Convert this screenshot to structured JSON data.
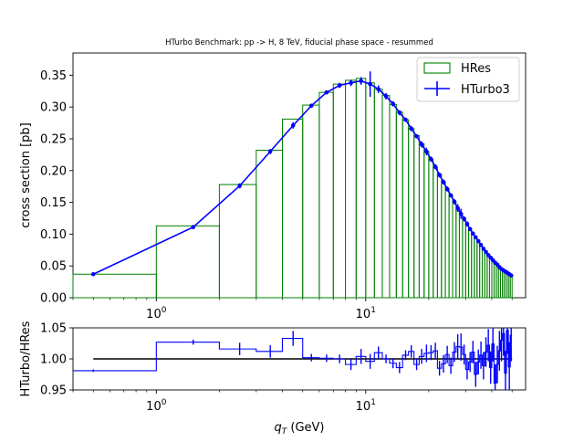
{
  "chart_data": [
    {
      "type": "histogram-line",
      "title": "HTurbo Benchmark: pp -> H, 8 TeV, fiducial phase space - resummed",
      "xlabel": "",
      "ylabel": "cross section [pb]",
      "xscale": "log",
      "xlim": [
        0.4,
        58
      ],
      "ylim": [
        0,
        0.385
      ],
      "yticks": [
        "0.00",
        "0.05",
        "0.10",
        "0.15",
        "0.20",
        "0.25",
        "0.30",
        "0.35"
      ],
      "xticks": [
        {
          "value": 1,
          "base": "10",
          "exp": "0"
        },
        {
          "value": 10,
          "base": "10",
          "exp": "1"
        }
      ],
      "legend": {
        "position": "top-right",
        "entries": [
          {
            "name": "HRes",
            "color": "#008000",
            "kind": "step"
          },
          {
            "name": "HTurbo3",
            "color": "#0000ff",
            "kind": "errorbar-line"
          }
        ]
      },
      "hres_bins": {
        "edges": [
          0,
          1,
          2,
          3,
          4,
          5,
          6,
          7,
          8,
          9,
          10,
          11,
          12,
          13,
          14,
          15,
          16,
          17,
          18,
          19,
          20,
          21,
          22,
          23,
          24,
          25,
          26,
          27,
          28,
          29,
          30,
          31,
          32,
          33,
          34,
          35,
          36,
          37,
          38,
          39,
          40,
          41,
          42,
          43,
          44,
          45,
          46,
          47,
          48,
          49,
          50
        ],
        "values": [
          0.037,
          0.113,
          0.178,
          0.232,
          0.281,
          0.303,
          0.323,
          0.336,
          0.342,
          0.345,
          0.338,
          0.328,
          0.318,
          0.304,
          0.292,
          0.28,
          0.266,
          0.255,
          0.242,
          0.23,
          0.217,
          0.205,
          0.194,
          0.182,
          0.171,
          0.161,
          0.151,
          0.141,
          0.132,
          0.124,
          0.116,
          0.108,
          0.101,
          0.095,
          0.089,
          0.083,
          0.077,
          0.072,
          0.067,
          0.063,
          0.059,
          0.055,
          0.052,
          0.048,
          0.045,
          0.042,
          0.04,
          0.037,
          0.035,
          0.033
        ]
      },
      "hturbo_points": {
        "x": [
          0.5,
          1.5,
          2.5,
          3.5,
          4.5,
          5.5,
          6.5,
          7.5,
          8.5,
          9.5,
          10.5,
          11.5,
          12.5,
          13.5,
          14.5,
          15.5,
          16.5,
          17.5,
          18.5,
          19.5,
          20.5,
          21.5,
          22.5,
          23.5,
          24.5,
          25.5,
          26.5,
          27.5,
          28.5,
          29.5,
          30.5,
          31.5,
          32.5,
          33.5,
          34.5,
          35.5,
          36.5,
          37.5,
          38.5,
          39.5,
          40.5,
          41.5,
          42.5,
          43.5,
          44.5,
          45.5,
          46.5,
          47.5,
          48.5,
          49.5
        ],
        "y": [
          0.037,
          0.111,
          0.176,
          0.23,
          0.271,
          0.302,
          0.323,
          0.334,
          0.338,
          0.341,
          0.336,
          0.328,
          0.317,
          0.305,
          0.291,
          0.28,
          0.266,
          0.254,
          0.241,
          0.23,
          0.218,
          0.206,
          0.193,
          0.182,
          0.171,
          0.161,
          0.151,
          0.141,
          0.132,
          0.124,
          0.116,
          0.108,
          0.101,
          0.095,
          0.089,
          0.083,
          0.077,
          0.072,
          0.067,
          0.063,
          0.059,
          0.055,
          0.052,
          0.048,
          0.045,
          0.043,
          0.041,
          0.039,
          0.037,
          0.035
        ],
        "yerr": [
          0.001,
          0.002,
          0.004,
          0.004,
          0.005,
          0.003,
          0.003,
          0.004,
          0.005,
          0.006,
          0.02,
          0.006,
          0.005,
          0.004,
          0.004,
          0.003,
          0.004,
          0.003,
          0.005,
          0.006,
          0.004,
          0.004,
          0.004,
          0.004,
          0.004,
          0.003,
          0.004,
          0.006,
          0.008,
          0.004,
          0.004,
          0.003,
          0.003,
          0.003,
          0.003,
          0.003,
          0.002,
          0.002,
          0.002,
          0.002,
          0.002,
          0.002,
          0.002,
          0.002,
          0.002,
          0.002,
          0.002,
          0.002,
          0.002,
          0.002
        ]
      }
    },
    {
      "type": "ratio-step",
      "xlabel_main": "q",
      "xlabel_sub": "T",
      "xlabel_unit": " (GeV)",
      "ylabel": "HTurbo/HRes",
      "xscale": "log",
      "xlim": [
        0.4,
        58
      ],
      "ylim": [
        0.95,
        1.05
      ],
      "yticks": [
        "0.95",
        "1.00",
        "1.05"
      ],
      "xticks": [
        {
          "value": 1,
          "base": "10",
          "exp": "0"
        },
        {
          "value": 10,
          "base": "10",
          "exp": "1"
        }
      ],
      "reference": 1.0,
      "ratio": [
        0.981,
        1.027,
        1.016,
        1.012,
        1.033,
        1.002,
        1.001,
        1.0,
        0.991,
        1.004,
        0.996,
        1.01,
        1.0,
        0.993,
        0.986,
        1.006,
        1.012,
        0.991,
        1.004,
        1.009,
        1.01,
        1.013,
        0.985,
        0.992,
        1.007,
        0.989,
        1.011,
        1.02,
        1.019,
        1.007,
        0.983,
        0.995,
        1.011,
        0.975,
        0.995,
        1.006,
        0.989,
        1.011,
        1.022,
        0.986,
        1.024,
        0.961,
        0.991,
        1.013,
        1.03,
        1.041,
        0.977,
        1.046,
        0.987,
        1.038
      ],
      "ratio_err": [
        0.002,
        0.004,
        0.01,
        0.01,
        0.012,
        0.006,
        0.006,
        0.007,
        0.009,
        0.012,
        0.012,
        0.01,
        0.007,
        0.008,
        0.009,
        0.008,
        0.01,
        0.009,
        0.012,
        0.014,
        0.012,
        0.013,
        0.012,
        0.014,
        0.014,
        0.013,
        0.016,
        0.02,
        0.022,
        0.016,
        0.016,
        0.016,
        0.018,
        0.02,
        0.02,
        0.022,
        0.022,
        0.024,
        0.026,
        0.026,
        0.028,
        0.03,
        0.03,
        0.032,
        0.034,
        0.036,
        0.036,
        0.038,
        0.04,
        0.042
      ]
    }
  ]
}
